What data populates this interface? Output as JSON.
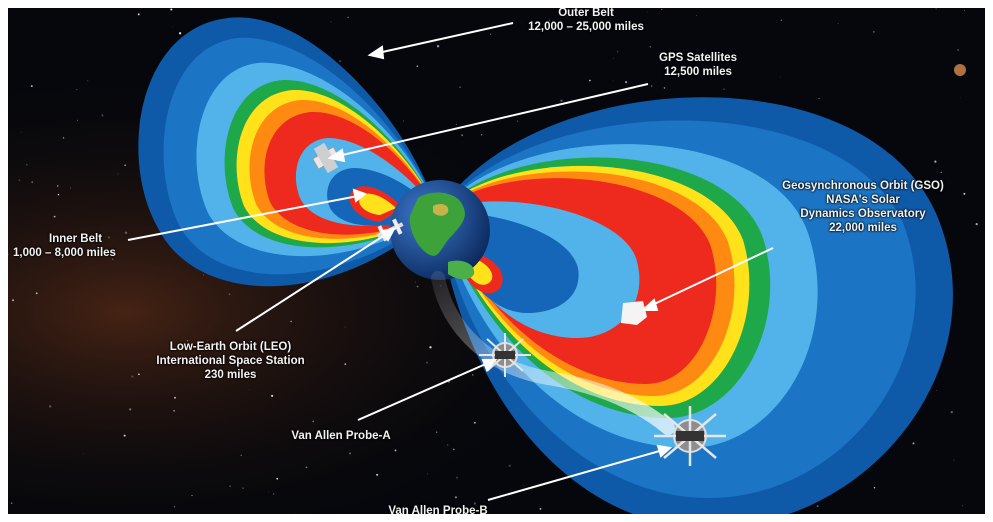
{
  "labels": {
    "outer_belt": {
      "line1": "Outer Belt",
      "line2": "12,000 – 25,000 miles"
    },
    "gps": {
      "line1": "GPS Satellites",
      "line2": "12,500 miles"
    },
    "inner_belt": {
      "line1": "Inner Belt",
      "line2": "1,000 – 8,000 miles"
    },
    "gso": {
      "line1": "Geosynchronous Orbit (GSO)",
      "line2": "NASA's Solar",
      "line3": "Dynamics Observatory",
      "line4": "22,000 miles"
    },
    "leo": {
      "line1": "Low-Earth Orbit (LEO)",
      "line2": "International Space Station",
      "line3": "230 miles"
    },
    "probe_a": {
      "line1": "Van Allen Probe-A"
    },
    "probe_b": {
      "line1": "Van Allen Probe-B"
    }
  },
  "colors": {
    "space": "#05070c",
    "belt_outer": "#1565b8",
    "belt_light": "#4fb0e8",
    "green": "#1fa84a",
    "yellow": "#ffe21a",
    "orange": "#ff8a12",
    "red": "#ee2a1e",
    "earth_ocean": "#1e4fa0"
  }
}
